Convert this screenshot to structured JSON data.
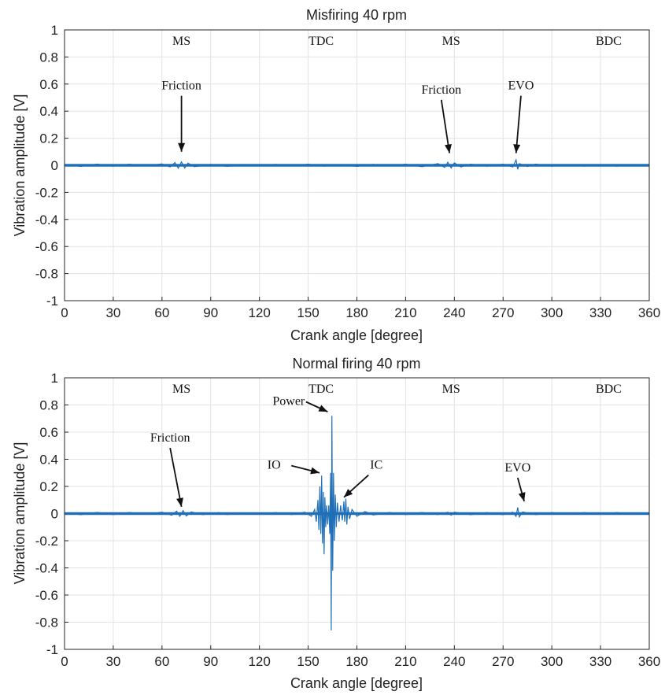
{
  "colors": {
    "trace": "#1f6eb8",
    "arrow": "#111111",
    "grid": "#e3e3e3"
  },
  "chart_data": [
    {
      "type": "line",
      "title": "Misfiring 40 rpm",
      "xlabel": "Crank angle [degree]",
      "ylabel": "Vibration amplitude [V]",
      "xlim": [
        0,
        360
      ],
      "ylim": [
        -1,
        1
      ],
      "xticks": [
        0,
        30,
        60,
        90,
        120,
        150,
        180,
        210,
        240,
        270,
        300,
        330,
        360
      ],
      "yticks": [
        -1,
        -0.8,
        -0.6,
        -0.4,
        -0.2,
        0,
        0.2,
        0.4,
        0.6,
        0.8,
        1
      ],
      "grid": true,
      "phase_labels": [
        {
          "text": "MS",
          "x": 72
        },
        {
          "text": "TDC",
          "x": 158
        },
        {
          "text": "MS",
          "x": 238
        },
        {
          "text": "BDC",
          "x": 335
        }
      ],
      "annotations": [
        {
          "text": "Friction",
          "x": 72,
          "y": 0.56,
          "arrow_to": [
            72,
            0.1
          ]
        },
        {
          "text": "Friction",
          "x": 232,
          "y": 0.53,
          "arrow_to": [
            237,
            0.09
          ]
        },
        {
          "text": "EVO",
          "x": 281,
          "y": 0.56,
          "arrow_to": [
            278,
            0.09
          ]
        }
      ],
      "series": [
        {
          "points": [
            [
              0,
              0.006
            ],
            [
              10,
              -0.008
            ],
            [
              20,
              0.009
            ],
            [
              30,
              -0.007
            ],
            [
              40,
              0.008
            ],
            [
              50,
              -0.006
            ],
            [
              60,
              0.01
            ],
            [
              65,
              -0.012
            ],
            [
              68,
              0.02
            ],
            [
              70,
              -0.022
            ],
            [
              72,
              0.025
            ],
            [
              74,
              -0.02
            ],
            [
              76,
              0.016
            ],
            [
              80,
              -0.01
            ],
            [
              90,
              0.007
            ],
            [
              100,
              -0.008
            ],
            [
              110,
              0.006
            ],
            [
              120,
              -0.006
            ],
            [
              130,
              0.007
            ],
            [
              140,
              -0.006
            ],
            [
              150,
              0.008
            ],
            [
              160,
              -0.007
            ],
            [
              170,
              0.006
            ],
            [
              180,
              -0.008
            ],
            [
              190,
              0.007
            ],
            [
              200,
              -0.006
            ],
            [
              210,
              0.008
            ],
            [
              220,
              -0.01
            ],
            [
              230,
              0.012
            ],
            [
              234,
              -0.016
            ],
            [
              236,
              0.022
            ],
            [
              238,
              -0.02
            ],
            [
              240,
              0.018
            ],
            [
              244,
              -0.012
            ],
            [
              250,
              0.008
            ],
            [
              260,
              -0.007
            ],
            [
              270,
              0.008
            ],
            [
              276,
              -0.012
            ],
            [
              278,
              0.04
            ],
            [
              279,
              -0.03
            ],
            [
              280,
              0.012
            ],
            [
              285,
              -0.009
            ],
            [
              290,
              0.009
            ],
            [
              300,
              -0.007
            ],
            [
              310,
              0.006
            ],
            [
              320,
              -0.007
            ],
            [
              330,
              0.006
            ],
            [
              340,
              -0.007
            ],
            [
              350,
              0.006
            ],
            [
              360,
              -0.005
            ]
          ]
        }
      ]
    },
    {
      "type": "line",
      "title": "Normal firing 40 rpm",
      "xlabel": "Crank angle [degree]",
      "ylabel": "Vibration amplitude [V]",
      "xlim": [
        0,
        360
      ],
      "ylim": [
        -1,
        1
      ],
      "xticks": [
        0,
        30,
        60,
        90,
        120,
        150,
        180,
        210,
        240,
        270,
        300,
        330,
        360
      ],
      "yticks": [
        -1,
        -0.8,
        -0.6,
        -0.4,
        -0.2,
        0,
        0.2,
        0.4,
        0.6,
        0.8,
        1
      ],
      "grid": true,
      "phase_labels": [
        {
          "text": "MS",
          "x": 72
        },
        {
          "text": "TDC",
          "x": 158
        },
        {
          "text": "MS",
          "x": 238
        },
        {
          "text": "BDC",
          "x": 335
        }
      ],
      "annotations": [
        {
          "text": "Friction",
          "x": 65,
          "y": 0.53,
          "arrow_to": [
            72,
            0.05
          ]
        },
        {
          "text": "Power",
          "x": 138,
          "y": 0.8,
          "arrow_to": [
            162,
            0.75
          ]
        },
        {
          "text": "IO",
          "x": 129,
          "y": 0.33,
          "arrow_to": [
            157,
            0.3
          ]
        },
        {
          "text": "IC",
          "x": 192,
          "y": 0.33,
          "arrow_to": [
            172,
            0.12
          ]
        },
        {
          "text": "EVO",
          "x": 279,
          "y": 0.31,
          "arrow_to": [
            283,
            0.09
          ]
        }
      ],
      "series": [
        {
          "points": [
            [
              0,
              0.006
            ],
            [
              10,
              -0.008
            ],
            [
              20,
              0.009
            ],
            [
              30,
              -0.007
            ],
            [
              40,
              0.008
            ],
            [
              50,
              -0.006
            ],
            [
              60,
              0.01
            ],
            [
              66,
              -0.012
            ],
            [
              69,
              0.018
            ],
            [
              71,
              -0.02
            ],
            [
              73,
              0.022
            ],
            [
              75,
              -0.018
            ],
            [
              78,
              0.012
            ],
            [
              85,
              -0.008
            ],
            [
              95,
              0.007
            ],
            [
              100,
              -0.007
            ],
            [
              110,
              0.006
            ],
            [
              120,
              -0.006
            ],
            [
              130,
              0.007
            ],
            [
              140,
              -0.007
            ],
            [
              148,
              0.01
            ],
            [
              152,
              -0.02
            ],
            [
              154,
              0.03
            ],
            [
              155,
              -0.06
            ],
            [
              156,
              0.1
            ],
            [
              156.6,
              -0.12
            ],
            [
              157.2,
              0.2
            ],
            [
              157.8,
              -0.15
            ],
            [
              158.3,
              0.28
            ],
            [
              158.8,
              -0.22
            ],
            [
              159.3,
              0.16
            ],
            [
              159.8,
              -0.3
            ],
            [
              160.3,
              0.12
            ],
            [
              160.8,
              -0.1
            ],
            [
              161.3,
              0.06
            ],
            [
              162,
              -0.08
            ],
            [
              162.7,
              0.06
            ],
            [
              163.3,
              -0.15
            ],
            [
              163.8,
              0.3
            ],
            [
              164.2,
              -0.86
            ],
            [
              164.6,
              0.72
            ],
            [
              165.1,
              -0.42
            ],
            [
              165.6,
              0.3
            ],
            [
              166.1,
              -0.2
            ],
            [
              166.7,
              0.14
            ],
            [
              167.3,
              -0.1
            ],
            [
              168,
              0.08
            ],
            [
              169,
              -0.06
            ],
            [
              170,
              0.06
            ],
            [
              171,
              -0.05
            ],
            [
              172,
              0.09
            ],
            [
              172.5,
              -0.06
            ],
            [
              173.2,
              0.11
            ],
            [
              173.8,
              -0.08
            ],
            [
              174.5,
              0.05
            ],
            [
              175.5,
              -0.04
            ],
            [
              177,
              0.03
            ],
            [
              180,
              -0.02
            ],
            [
              185,
              0.015
            ],
            [
              190,
              -0.01
            ],
            [
              200,
              0.008
            ],
            [
              210,
              -0.007
            ],
            [
              220,
              0.008
            ],
            [
              230,
              -0.007
            ],
            [
              236,
              0.01
            ],
            [
              238,
              -0.012
            ],
            [
              240,
              0.01
            ],
            [
              250,
              -0.008
            ],
            [
              260,
              0.007
            ],
            [
              270,
              -0.008
            ],
            [
              276,
              0.01
            ],
            [
              278,
              -0.02
            ],
            [
              279,
              0.045
            ],
            [
              280,
              -0.025
            ],
            [
              282,
              0.012
            ],
            [
              290,
              -0.008
            ],
            [
              300,
              0.007
            ],
            [
              310,
              -0.006
            ],
            [
              320,
              0.007
            ],
            [
              330,
              -0.006
            ],
            [
              340,
              0.007
            ],
            [
              350,
              -0.006
            ],
            [
              360,
              0.005
            ]
          ]
        }
      ]
    }
  ]
}
